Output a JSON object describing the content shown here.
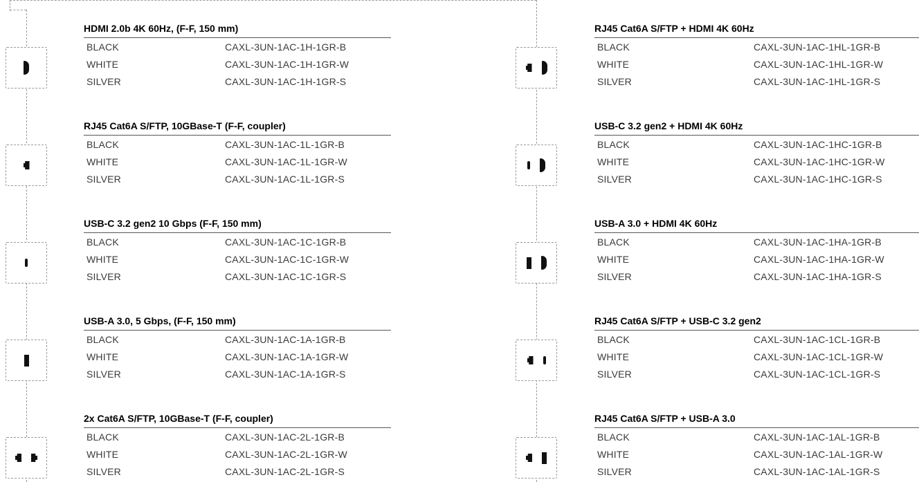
{
  "left_column": [
    {
      "title": "HDMI 2.0b 4K 60Hz, (F-F, 150 mm)",
      "icon": [
        "hdmi-port-icon"
      ],
      "rows": [
        {
          "color": "BLACK",
          "code": "CAXL-3UN-1AC-1H-1GR-B"
        },
        {
          "color": "WHITE",
          "code": "CAXL-3UN-1AC-1H-1GR-W"
        },
        {
          "color": "SILVER",
          "code": "CAXL-3UN-1AC-1H-1GR-S"
        }
      ]
    },
    {
      "title": "RJ45 Cat6A S/FTP, 10GBase-T (F-F, coupler)",
      "icon": [
        "rj45-port-icon"
      ],
      "rows": [
        {
          "color": "BLACK",
          "code": "CAXL-3UN-1AC-1L-1GR-B"
        },
        {
          "color": "WHITE",
          "code": "CAXL-3UN-1AC-1L-1GR-W"
        },
        {
          "color": "SILVER",
          "code": "CAXL-3UN-1AC-1L-1GR-S"
        }
      ]
    },
    {
      "title": "USB-C 3.2 gen2 10 Gbps (F-F, 150 mm)",
      "icon": [
        "usb-c-port-icon"
      ],
      "rows": [
        {
          "color": "BLACK",
          "code": "CAXL-3UN-1AC-1C-1GR-B"
        },
        {
          "color": "WHITE",
          "code": "CAXL-3UN-1AC-1C-1GR-W"
        },
        {
          "color": "SILVER",
          "code": "CAXL-3UN-1AC-1C-1GR-S"
        }
      ]
    },
    {
      "title": "USB-A 3.0, 5 Gbps, (F-F, 150 mm)",
      "icon": [
        "usb-a-port-icon"
      ],
      "rows": [
        {
          "color": "BLACK",
          "code": "CAXL-3UN-1AC-1A-1GR-B"
        },
        {
          "color": "WHITE",
          "code": "CAXL-3UN-1AC-1A-1GR-W"
        },
        {
          "color": "SILVER",
          "code": "CAXL-3UN-1AC-1A-1GR-S"
        }
      ]
    },
    {
      "title": "2x Cat6A S/FTP, 10GBase-T (F-F, coupler)",
      "icon": [
        "rj45-port-icon",
        "rj45-port-icon"
      ],
      "rows": [
        {
          "color": "BLACK",
          "code": "CAXL-3UN-1AC-2L-1GR-B"
        },
        {
          "color": "WHITE",
          "code": "CAXL-3UN-1AC-2L-1GR-W"
        },
        {
          "color": "SILVER",
          "code": "CAXL-3UN-1AC-2L-1GR-S"
        }
      ]
    }
  ],
  "right_column": [
    {
      "title": "RJ45 Cat6A S/FTP + HDMI 4K 60Hz",
      "icon": [
        "rj45-port-icon",
        "hdmi-port-icon"
      ],
      "rows": [
        {
          "color": "BLACK",
          "code": "CAXL-3UN-1AC-1HL-1GR-B"
        },
        {
          "color": "WHITE",
          "code": "CAXL-3UN-1AC-1HL-1GR-W"
        },
        {
          "color": "SILVER",
          "code": "CAXL-3UN-1AC-1HL-1GR-S"
        }
      ]
    },
    {
      "title": "USB-C 3.2 gen2 + HDMI 4K 60Hz",
      "icon": [
        "usb-c-port-icon",
        "hdmi-port-icon"
      ],
      "rows": [
        {
          "color": "BLACK",
          "code": "CAXL-3UN-1AC-1HC-1GR-B"
        },
        {
          "color": "WHITE",
          "code": "CAXL-3UN-1AC-1HC-1GR-W"
        },
        {
          "color": "SILVER",
          "code": "CAXL-3UN-1AC-1HC-1GR-S"
        }
      ]
    },
    {
      "title": "USB-A 3.0 + HDMI 4K 60Hz",
      "icon": [
        "usb-a-port-icon",
        "hdmi-port-icon"
      ],
      "rows": [
        {
          "color": "BLACK",
          "code": "CAXL-3UN-1AC-1HA-1GR-B"
        },
        {
          "color": "WHITE",
          "code": "CAXL-3UN-1AC-1HA-1GR-W"
        },
        {
          "color": "SILVER",
          "code": "CAXL-3UN-1AC-1HA-1GR-S"
        }
      ]
    },
    {
      "title": "RJ45 Cat6A S/FTP + USB-C 3.2 gen2",
      "icon": [
        "rj45-port-icon",
        "usb-c-port-icon"
      ],
      "rows": [
        {
          "color": "BLACK",
          "code": "CAXL-3UN-1AC-1CL-1GR-B"
        },
        {
          "color": "WHITE",
          "code": "CAXL-3UN-1AC-1CL-1GR-W"
        },
        {
          "color": "SILVER",
          "code": "CAXL-3UN-1AC-1CL-1GR-S"
        }
      ]
    },
    {
      "title": "RJ45 Cat6A S/FTP + USB-A 3.0",
      "icon": [
        "rj45-port-icon",
        "usb-a-port-icon"
      ],
      "rows": [
        {
          "color": "BLACK",
          "code": "CAXL-3UN-1AC-1AL-1GR-B"
        },
        {
          "color": "WHITE",
          "code": "CAXL-3UN-1AC-1AL-1GR-W"
        },
        {
          "color": "SILVER",
          "code": "CAXL-3UN-1AC-1AL-1GR-S"
        }
      ]
    }
  ]
}
